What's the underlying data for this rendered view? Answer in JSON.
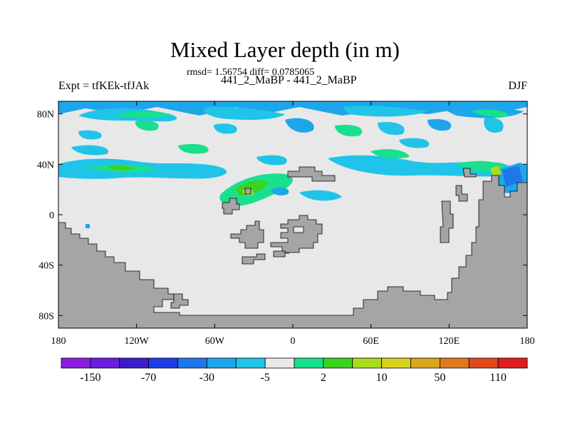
{
  "title": "Mixed Layer depth (in m)",
  "stats_line": "rmsd= 1.56754 diff= 0.0785065",
  "experiment_line": "441_2_MaBP - 441_2_MaBP",
  "left_label": "Expt = tfKEk-tfJAk",
  "right_label": "DJF",
  "lat_ticks": [
    {
      "lat": 80,
      "label": "80N"
    },
    {
      "lat": 40,
      "label": "40N"
    },
    {
      "lat": 0,
      "label": "0"
    },
    {
      "lat": -40,
      "label": "40S"
    },
    {
      "lat": -80,
      "label": "80S"
    }
  ],
  "lon_ticks": [
    {
      "lon": -180,
      "label": "180"
    },
    {
      "lon": -120,
      "label": "120W"
    },
    {
      "lon": -60,
      "label": "60W"
    },
    {
      "lon": 0,
      "label": "0"
    },
    {
      "lon": 60,
      "label": "60E"
    },
    {
      "lon": 120,
      "label": "120E"
    },
    {
      "lon": 180,
      "label": "180"
    }
  ],
  "colorbar": {
    "colors": [
      "#8a1ce0",
      "#6a1de0",
      "#3b1ec8",
      "#1e3ce6",
      "#1e78ea",
      "#1ea6ea",
      "#20c4e8",
      "#e8e8e8",
      "#18e08c",
      "#3cd21e",
      "#a8dc1c",
      "#d8d21c",
      "#d8a81c",
      "#e0781c",
      "#e0481c",
      "#e01e1e"
    ],
    "labels": [
      "-150",
      "-70",
      "-30",
      "-5",
      "2",
      "10",
      "50",
      "110"
    ]
  },
  "colors": {
    "land": "#a5a5a5",
    "ocean_neutral": "#e8e8e8",
    "blue_anomaly": "#1ea6ea",
    "light_blue_anomaly": "#20c4e8",
    "green_anomaly": "#18e08c",
    "bright_green_anomaly": "#3cd21e",
    "yellow_green_anomaly": "#a8dc1c",
    "deep_blue_anomaly": "#1e78ea"
  }
}
